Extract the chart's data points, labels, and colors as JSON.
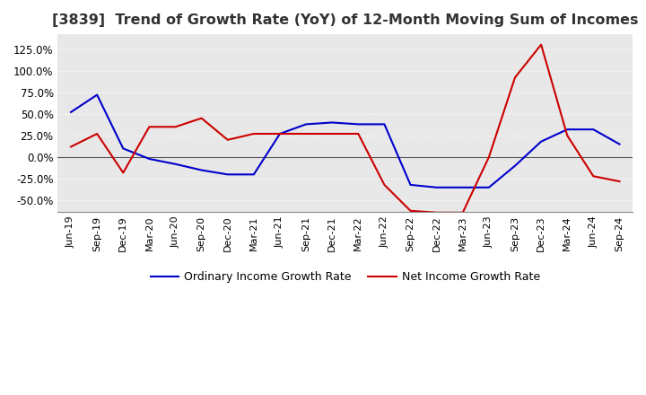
{
  "title": "[3839]  Trend of Growth Rate (YoY) of 12-Month Moving Sum of Incomes",
  "title_fontsize": 11.5,
  "ylim_min": -0.63,
  "ylim_max": 1.42,
  "yticks": [
    -0.5,
    -0.25,
    0.0,
    0.25,
    0.5,
    0.75,
    1.0,
    1.25
  ],
  "background_color": "#ffffff",
  "plot_bg_color": "#e8e8e8",
  "grid_color": "#ffffff",
  "x_labels": [
    "Jun-19",
    "Sep-19",
    "Dec-19",
    "Mar-20",
    "Jun-20",
    "Sep-20",
    "Dec-20",
    "Mar-21",
    "Jun-21",
    "Sep-21",
    "Dec-21",
    "Mar-22",
    "Jun-22",
    "Sep-22",
    "Dec-22",
    "Mar-23",
    "Jun-23",
    "Sep-23",
    "Dec-23",
    "Mar-24",
    "Jun-24",
    "Sep-24"
  ],
  "ordinary_income": [
    0.52,
    0.72,
    0.1,
    -0.02,
    -0.08,
    -0.15,
    -0.2,
    -0.2,
    0.27,
    0.38,
    0.4,
    0.38,
    0.38,
    -0.32,
    -0.35,
    -0.35,
    -0.35,
    -0.1,
    0.18,
    0.32,
    0.32,
    0.15
  ],
  "net_income": [
    0.12,
    0.27,
    -0.18,
    0.35,
    0.35,
    0.45,
    0.2,
    0.27,
    0.27,
    0.27,
    0.27,
    0.27,
    -0.32,
    -0.62,
    -0.64,
    -0.64,
    0.0,
    0.92,
    1.3,
    0.25,
    -0.22,
    -0.28
  ],
  "ordinary_color": "#0000cc",
  "net_color": "#cc0000",
  "line_width": 1.5,
  "legend_ordinary": "Ordinary Income Growth Rate",
  "legend_net": "Net Income Growth Rate"
}
